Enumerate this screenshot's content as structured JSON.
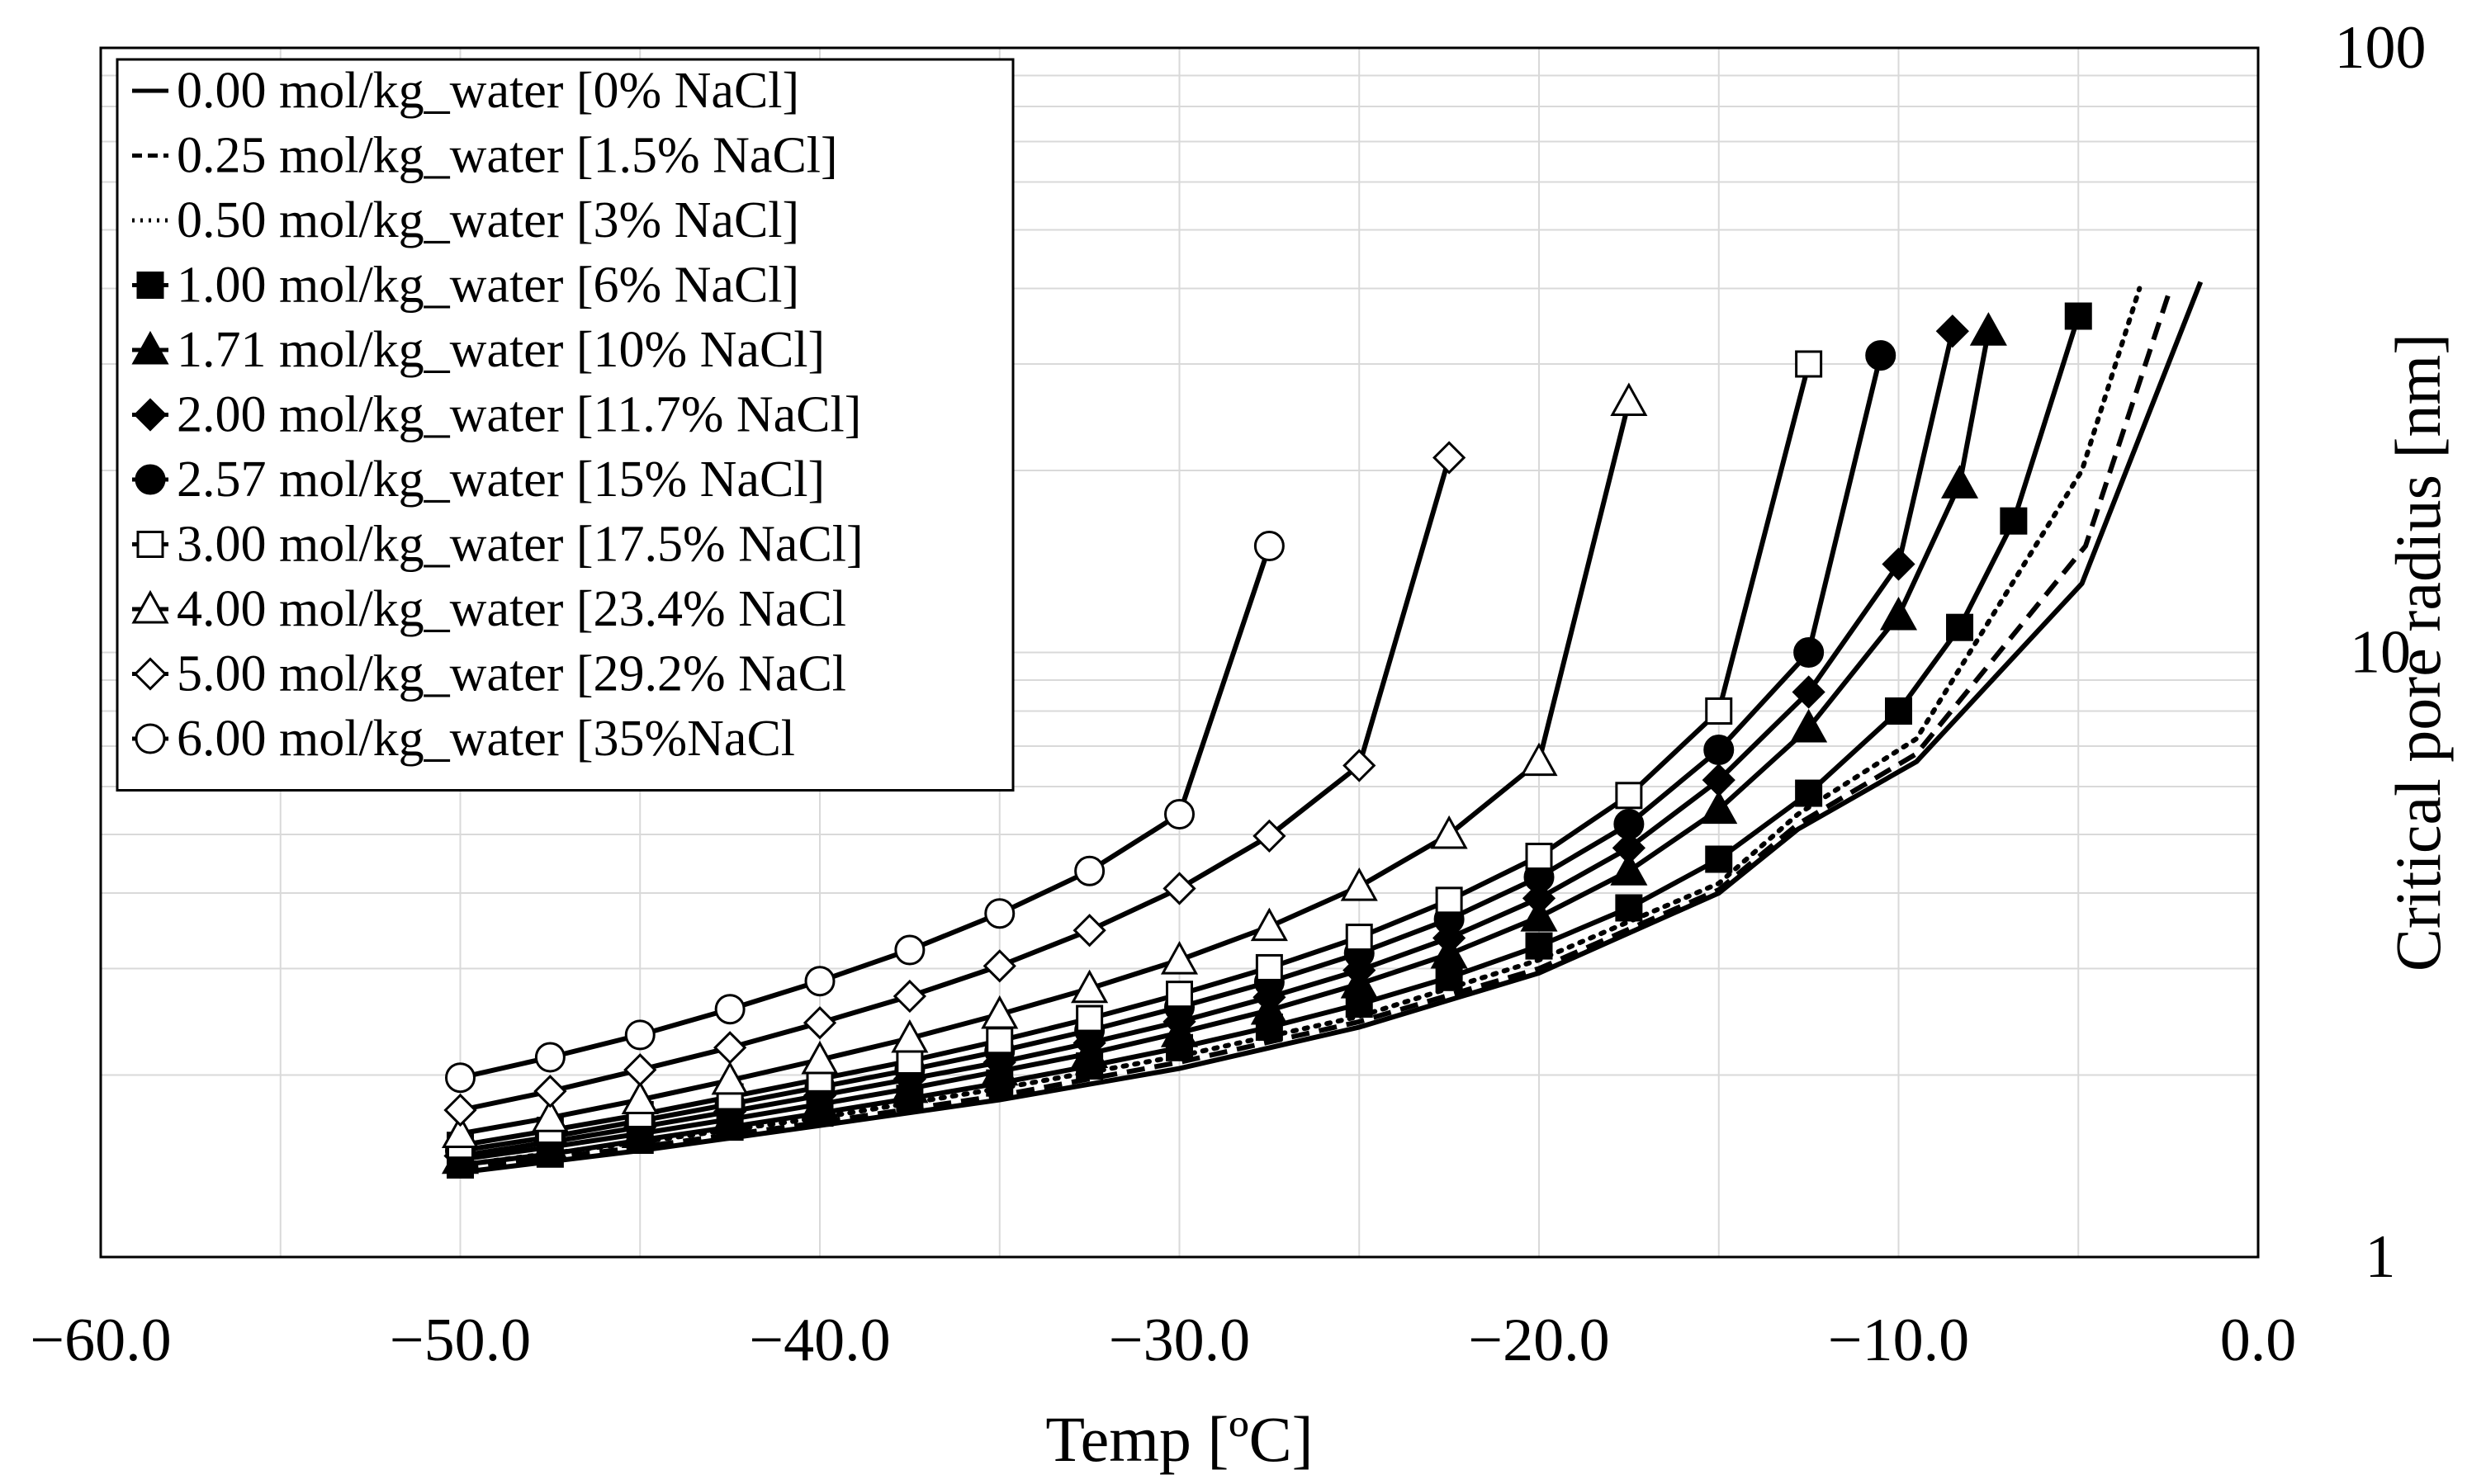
{
  "chart_data": {
    "type": "line",
    "title": "",
    "xlabel": "Temp [ºC]",
    "ylabel": "Critical pore radius [nm]",
    "xlim": [
      -60,
      0
    ],
    "ylim": [
      1,
      100
    ],
    "yscale": "log",
    "grid": true,
    "legend_position": "top-left",
    "x_ticks": [
      -60,
      -50,
      -40,
      -30,
      -20,
      -10,
      0
    ],
    "x_tick_labels": [
      "−60.0",
      "−50.0",
      "−40.0",
      "−30.0",
      "−20.0",
      "−10.0",
      "0.0"
    ],
    "y_ticks": [
      1,
      10,
      100
    ],
    "y_tick_labels": [
      "1",
      "10",
      "100"
    ],
    "series": [
      {
        "name": "0.00 mol/kg_water [0% NaCl]",
        "line": "solid",
        "marker": "none",
        "x": [
          -50,
          -45,
          -40,
          -35,
          -30,
          -25,
          -20,
          -15,
          -12.8,
          -9.5,
          -4.9,
          -1.6
        ],
        "y": [
          1.38,
          1.5,
          1.65,
          1.82,
          2.05,
          2.4,
          2.95,
          4.0,
          5.1,
          6.6,
          13.0,
          41.0
        ]
      },
      {
        "name": "0.25 mol/kg_water [1.5% NaCl]",
        "line": "dashed",
        "marker": "none",
        "x": [
          -50,
          -45,
          -40,
          -35,
          -30,
          -25,
          -20,
          -15,
          -12.8,
          -9.5,
          -4.8,
          -2.5
        ],
        "y": [
          1.4,
          1.52,
          1.67,
          1.85,
          2.1,
          2.45,
          3.0,
          4.05,
          5.2,
          6.8,
          15.0,
          39.0
        ]
      },
      {
        "name": "0.50 mol/kg_water [3% NaCl]",
        "line": "dotted",
        "marker": "none",
        "x": [
          -50,
          -45,
          -40,
          -35,
          -30,
          -25,
          -20,
          -15,
          -12.8,
          -9.5,
          -4.9,
          -3.3
        ],
        "y": [
          1.42,
          1.55,
          1.7,
          1.9,
          2.15,
          2.5,
          3.1,
          4.15,
          5.4,
          7.2,
          20.0,
          40.0
        ]
      },
      {
        "name": "1.00 mol/kg_water [6% NaCl]",
        "line": "solid",
        "marker": "square-filled",
        "x": [
          -50,
          -47.5,
          -45,
          -42.5,
          -40,
          -37.5,
          -35,
          -32.5,
          -30,
          -27.5,
          -25,
          -22.5,
          -20,
          -17.5,
          -15,
          -12.5,
          -10,
          -8.3,
          -6.8,
          -5
        ],
        "y": [
          1.42,
          1.48,
          1.56,
          1.64,
          1.73,
          1.83,
          1.94,
          2.07,
          2.22,
          2.4,
          2.62,
          2.9,
          3.27,
          3.78,
          4.55,
          5.85,
          8.0,
          11.0,
          16.5,
          36.0
        ]
      },
      {
        "name": "1.71 mol/kg_water [10% NaCl]",
        "line": "solid",
        "marker": "triangle-filled",
        "x": [
          -50,
          -47.5,
          -45,
          -42.5,
          -40,
          -37.5,
          -35,
          -32.5,
          -30,
          -27.5,
          -25,
          -22.5,
          -20,
          -17.5,
          -15,
          -12.5,
          -10,
          -8.3,
          -7.5
        ],
        "y": [
          1.45,
          1.52,
          1.6,
          1.69,
          1.79,
          1.9,
          2.03,
          2.17,
          2.35,
          2.56,
          2.83,
          3.17,
          3.65,
          4.35,
          5.5,
          7.5,
          11.5,
          19.0,
          34.0
        ]
      },
      {
        "name": "2.00 mol/kg_water [11.7% NaCl]",
        "line": "solid",
        "marker": "diamond-filled",
        "x": [
          -50,
          -47.5,
          -45,
          -42.5,
          -40,
          -37.5,
          -35,
          -32.5,
          -30,
          -27.5,
          -25,
          -22.5,
          -20,
          -17.5,
          -15,
          -12.5,
          -10,
          -8.5
        ],
        "y": [
          1.47,
          1.55,
          1.64,
          1.74,
          1.85,
          1.97,
          2.1,
          2.26,
          2.45,
          2.69,
          2.98,
          3.37,
          3.92,
          4.75,
          6.15,
          8.6,
          14.0,
          34.0
        ]
      },
      {
        "name": "2.57 mol/kg_water [15% NaCl]",
        "line": "solid",
        "marker": "circle-filled",
        "x": [
          -50,
          -47.5,
          -45,
          -42.5,
          -40,
          -37.5,
          -35,
          -32.5,
          -30,
          -27.5,
          -25,
          -22.5,
          -20,
          -17.5,
          -15,
          -12.5,
          -10.5
        ],
        "y": [
          1.5,
          1.58,
          1.68,
          1.79,
          1.91,
          2.04,
          2.19,
          2.37,
          2.59,
          2.85,
          3.18,
          3.62,
          4.25,
          5.2,
          6.9,
          10.0,
          31.0
        ]
      },
      {
        "name": "3.00 mol/kg_water [17.5% NaCl]",
        "line": "solid",
        "marker": "square-open",
        "x": [
          -50,
          -47.5,
          -45,
          -42.5,
          -40,
          -37.5,
          -35,
          -32.5,
          -30,
          -27.5,
          -25,
          -22.5,
          -20,
          -17.5,
          -15,
          -12.5
        ],
        "y": [
          1.53,
          1.62,
          1.72,
          1.84,
          1.97,
          2.11,
          2.28,
          2.48,
          2.72,
          3.01,
          3.38,
          3.89,
          4.6,
          5.8,
          8.0,
          30.0
        ]
      },
      {
        "name": "4.00 mol/kg_water [23.4% NaCl",
        "line": "solid",
        "marker": "triangle-open",
        "x": [
          -50,
          -47.5,
          -45,
          -42.5,
          -40,
          -37.5,
          -35,
          -32.5,
          -30,
          -27.5,
          -25,
          -22.5,
          -20,
          -17.5
        ],
        "y": [
          1.6,
          1.7,
          1.82,
          1.96,
          2.12,
          2.3,
          2.52,
          2.78,
          3.1,
          3.52,
          4.1,
          5.0,
          6.6,
          26.0
        ]
      },
      {
        "name": "5.00 mol/kg_water [29.2% NaCl",
        "line": "solid",
        "marker": "diamond-open",
        "x": [
          -50,
          -47.5,
          -45,
          -42.5,
          -40,
          -37.5,
          -35,
          -32.5,
          -30,
          -27.5,
          -25,
          -22.5
        ],
        "y": [
          1.75,
          1.88,
          2.04,
          2.22,
          2.44,
          2.7,
          3.03,
          3.47,
          4.07,
          4.97,
          6.5,
          21.0
        ]
      },
      {
        "name": "6.00 mol/kg_water [35%NaCl",
        "line": "solid",
        "marker": "circle-open",
        "x": [
          -50,
          -47.5,
          -45,
          -42.5,
          -40,
          -37.5,
          -35,
          -32.5,
          -30,
          -27.5
        ],
        "y": [
          1.98,
          2.14,
          2.33,
          2.57,
          2.86,
          3.22,
          3.7,
          4.35,
          5.4,
          15.0
        ]
      }
    ]
  }
}
